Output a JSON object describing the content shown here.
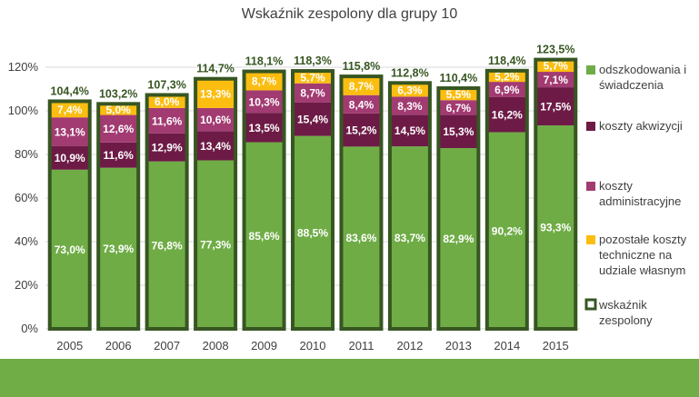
{
  "title": "Wskaźnik zespolony  dla grupy 10",
  "colors": {
    "odszkodowania": "#6fac46",
    "akwizycji": "#6d1b46",
    "administracyjne": "#a23b72",
    "pozostale": "#fbbd10",
    "wskaznik_border": "#375622",
    "wskaznik_label": "#375622",
    "band": "#70ad47"
  },
  "chart_data": {
    "type": "bar",
    "stacked": true,
    "title": "Wskaźnik zespolony  dla grupy 10",
    "categories": [
      "2005",
      "2006",
      "2007",
      "2008",
      "2009",
      "2010",
      "2011",
      "2012",
      "2013",
      "2014",
      "2015"
    ],
    "series": [
      {
        "key": "odszkodowania",
        "name": "odszkodowania i świadczenia",
        "legend_lines": [
          "odszkodowania i",
          "świadczenia"
        ],
        "values": [
          73.0,
          73.9,
          76.8,
          77.3,
          85.6,
          88.5,
          83.6,
          83.7,
          82.9,
          90.2,
          93.3
        ],
        "labels": [
          "73,0%",
          "73,9%",
          "76,8%",
          "77,3%",
          "85,6%",
          "88,5%",
          "83,6%",
          "83,7%",
          "82,9%",
          "90,2%",
          "93,3%"
        ]
      },
      {
        "key": "akwizycji",
        "name": "koszty akwizycji",
        "legend_lines": [
          "koszty akwizycji"
        ],
        "values": [
          10.9,
          11.6,
          12.9,
          13.4,
          13.5,
          15.4,
          15.2,
          14.5,
          15.3,
          16.2,
          17.5
        ],
        "labels": [
          "10,9%",
          "11,6%",
          "12,9%",
          "13,4%",
          "13,5%",
          "15,4%",
          "15,2%",
          "14,5%",
          "15,3%",
          "16,2%",
          "17,5%"
        ]
      },
      {
        "key": "administracyjne",
        "name": "koszty administracyjne",
        "legend_lines": [
          "koszty",
          "administracyjne"
        ],
        "values": [
          13.1,
          12.6,
          11.6,
          10.6,
          10.3,
          8.7,
          8.4,
          8.3,
          6.7,
          6.9,
          7.1
        ],
        "labels": [
          "13,1%",
          "12,6%",
          "11,6%",
          "10,6%",
          "10,3%",
          "8,7%",
          "8,4%",
          "8,3%",
          "6,7%",
          "6,9%",
          "7,1%"
        ]
      },
      {
        "key": "pozostale",
        "name": "pozostałe koszty techniczne na udziale własnym",
        "legend_lines": [
          "pozostałe koszty",
          "techniczne na",
          "udziale własnym"
        ],
        "values": [
          7.4,
          5.0,
          6.0,
          13.3,
          8.7,
          5.7,
          8.7,
          6.3,
          5.5,
          5.2,
          5.7
        ],
        "labels": [
          "7,4%",
          "5,0%",
          "6,0%",
          "13,3%",
          "8,7%",
          "5,7%",
          "8,7%",
          "6,3%",
          "5,5%",
          "5,2%",
          "5,7%"
        ]
      }
    ],
    "wskaznik": {
      "name": "wskaźnik zespolony",
      "legend_lines": [
        "wskaźnik",
        "zespolony"
      ],
      "values": [
        104.4,
        103.2,
        107.3,
        114.7,
        118.1,
        118.3,
        115.8,
        112.8,
        110.4,
        118.4,
        123.5
      ],
      "labels": [
        "104,4%",
        "103,2%",
        "107,3%",
        "114,7%",
        "118,1%",
        "118,3%",
        "115,8%",
        "112,8%",
        "110,4%",
        "118,4%",
        "123,5%"
      ]
    },
    "y_axis": {
      "min": 0,
      "max": 120,
      "step": 20,
      "tick_labels": [
        "0%",
        "20%",
        "40%",
        "60%",
        "80%",
        "100%",
        "120%"
      ]
    },
    "ylim": [
      0,
      120
    ],
    "gridlines": true,
    "legend_position": "right"
  }
}
